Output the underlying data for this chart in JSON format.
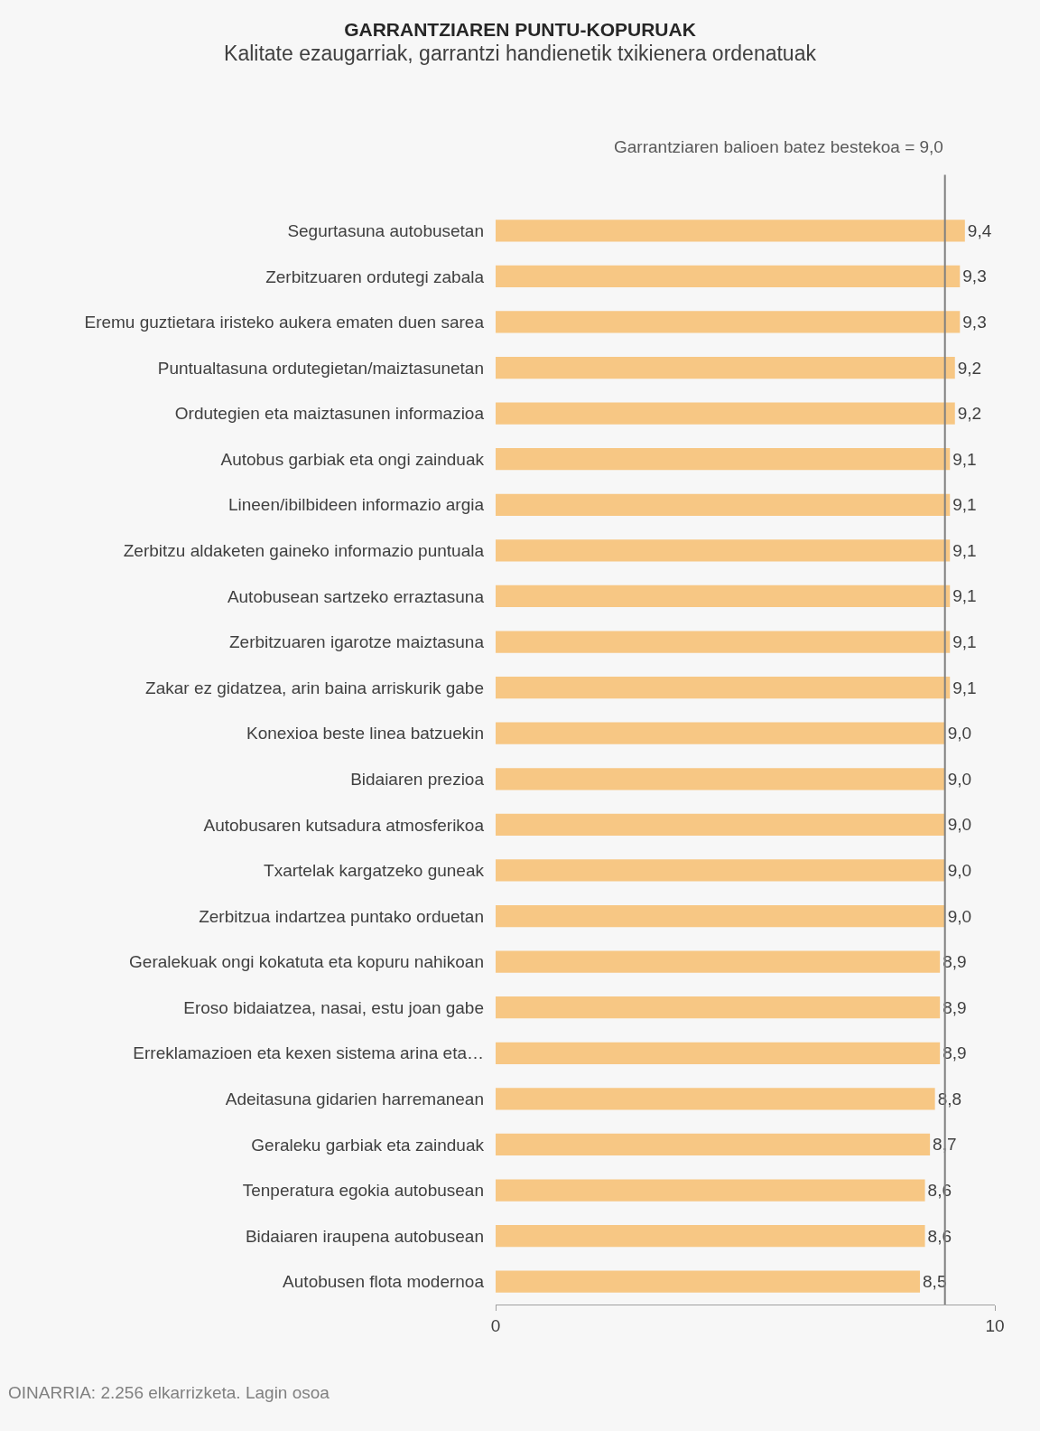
{
  "chart_data": {
    "type": "bar",
    "orientation": "horizontal",
    "title": "GARRANTZIAREN PUNTU-KOPURUAK",
    "subtitle": "Kalitate ezaugarriak, garrantzi handienetik txikienera ordenatuak",
    "categories": [
      "Segurtasuna autobusetan",
      "Zerbitzuaren ordutegi zabala",
      "Eremu guztietara iristeko aukera ematen duen sarea",
      "Puntualtasuna ordutegietan/maiztasunetan",
      "Ordutegien eta maiztasunen informazioa",
      "Autobus garbiak eta ongi zainduak",
      "Lineen/ibilbideen informazio argia",
      "Zerbitzu aldaketen gaineko informazio puntuala",
      "Autobusean sartzeko erraztasuna",
      "Zerbitzuaren igarotze maiztasuna",
      "Zakar ez gidatzea, arin baina arriskurik gabe",
      "Konexioa beste linea batzuekin",
      "Bidaiaren prezioa",
      "Autobusaren kutsadura atmosferikoa",
      "Txartelak kargatzeko guneak",
      "Zerbitzua indartzea puntako orduetan",
      "Geralekuak ongi kokatuta eta kopuru nahikoan",
      "Eroso bidaiatzea, nasai, estu joan gabe",
      "Erreklamazioen eta kexen sistema arina eta…",
      "Adeitasuna gidarien harremanean",
      "Geraleku garbiak eta zainduak",
      "Tenperatura egokia autobusean",
      "Bidaiaren iraupena autobusean",
      "Autobusen flota modernoa"
    ],
    "values": [
      9.4,
      9.3,
      9.3,
      9.2,
      9.2,
      9.1,
      9.1,
      9.1,
      9.1,
      9.1,
      9.1,
      9.0,
      9.0,
      9.0,
      9.0,
      9.0,
      8.9,
      8.9,
      8.9,
      8.8,
      8.7,
      8.6,
      8.6,
      8.5
    ],
    "value_labels": [
      "9,4",
      "9,3",
      "9,3",
      "9,2",
      "9,2",
      "9,1",
      "9,1",
      "9,1",
      "9,1",
      "9,1",
      "9,1",
      "9,0",
      "9,0",
      "9,0",
      "9,0",
      "9,0",
      "8,9",
      "8,9",
      "8,9",
      "8,8",
      "8,7",
      "8,6",
      "8,6",
      "8,5"
    ],
    "color": "#f7c784",
    "xlim": [
      0,
      10
    ],
    "xticks": [
      0,
      10
    ],
    "grid": false,
    "legend": false,
    "ref_lines": [
      {
        "axis": "x",
        "value": 9.0,
        "label": "Garrantziaren balioen batez bestekoa = 9,0",
        "color": "#7f7f7f"
      }
    ],
    "annotations": [
      "OINARRIA: 2.256 elkarrizketa. Lagin osoa"
    ]
  }
}
